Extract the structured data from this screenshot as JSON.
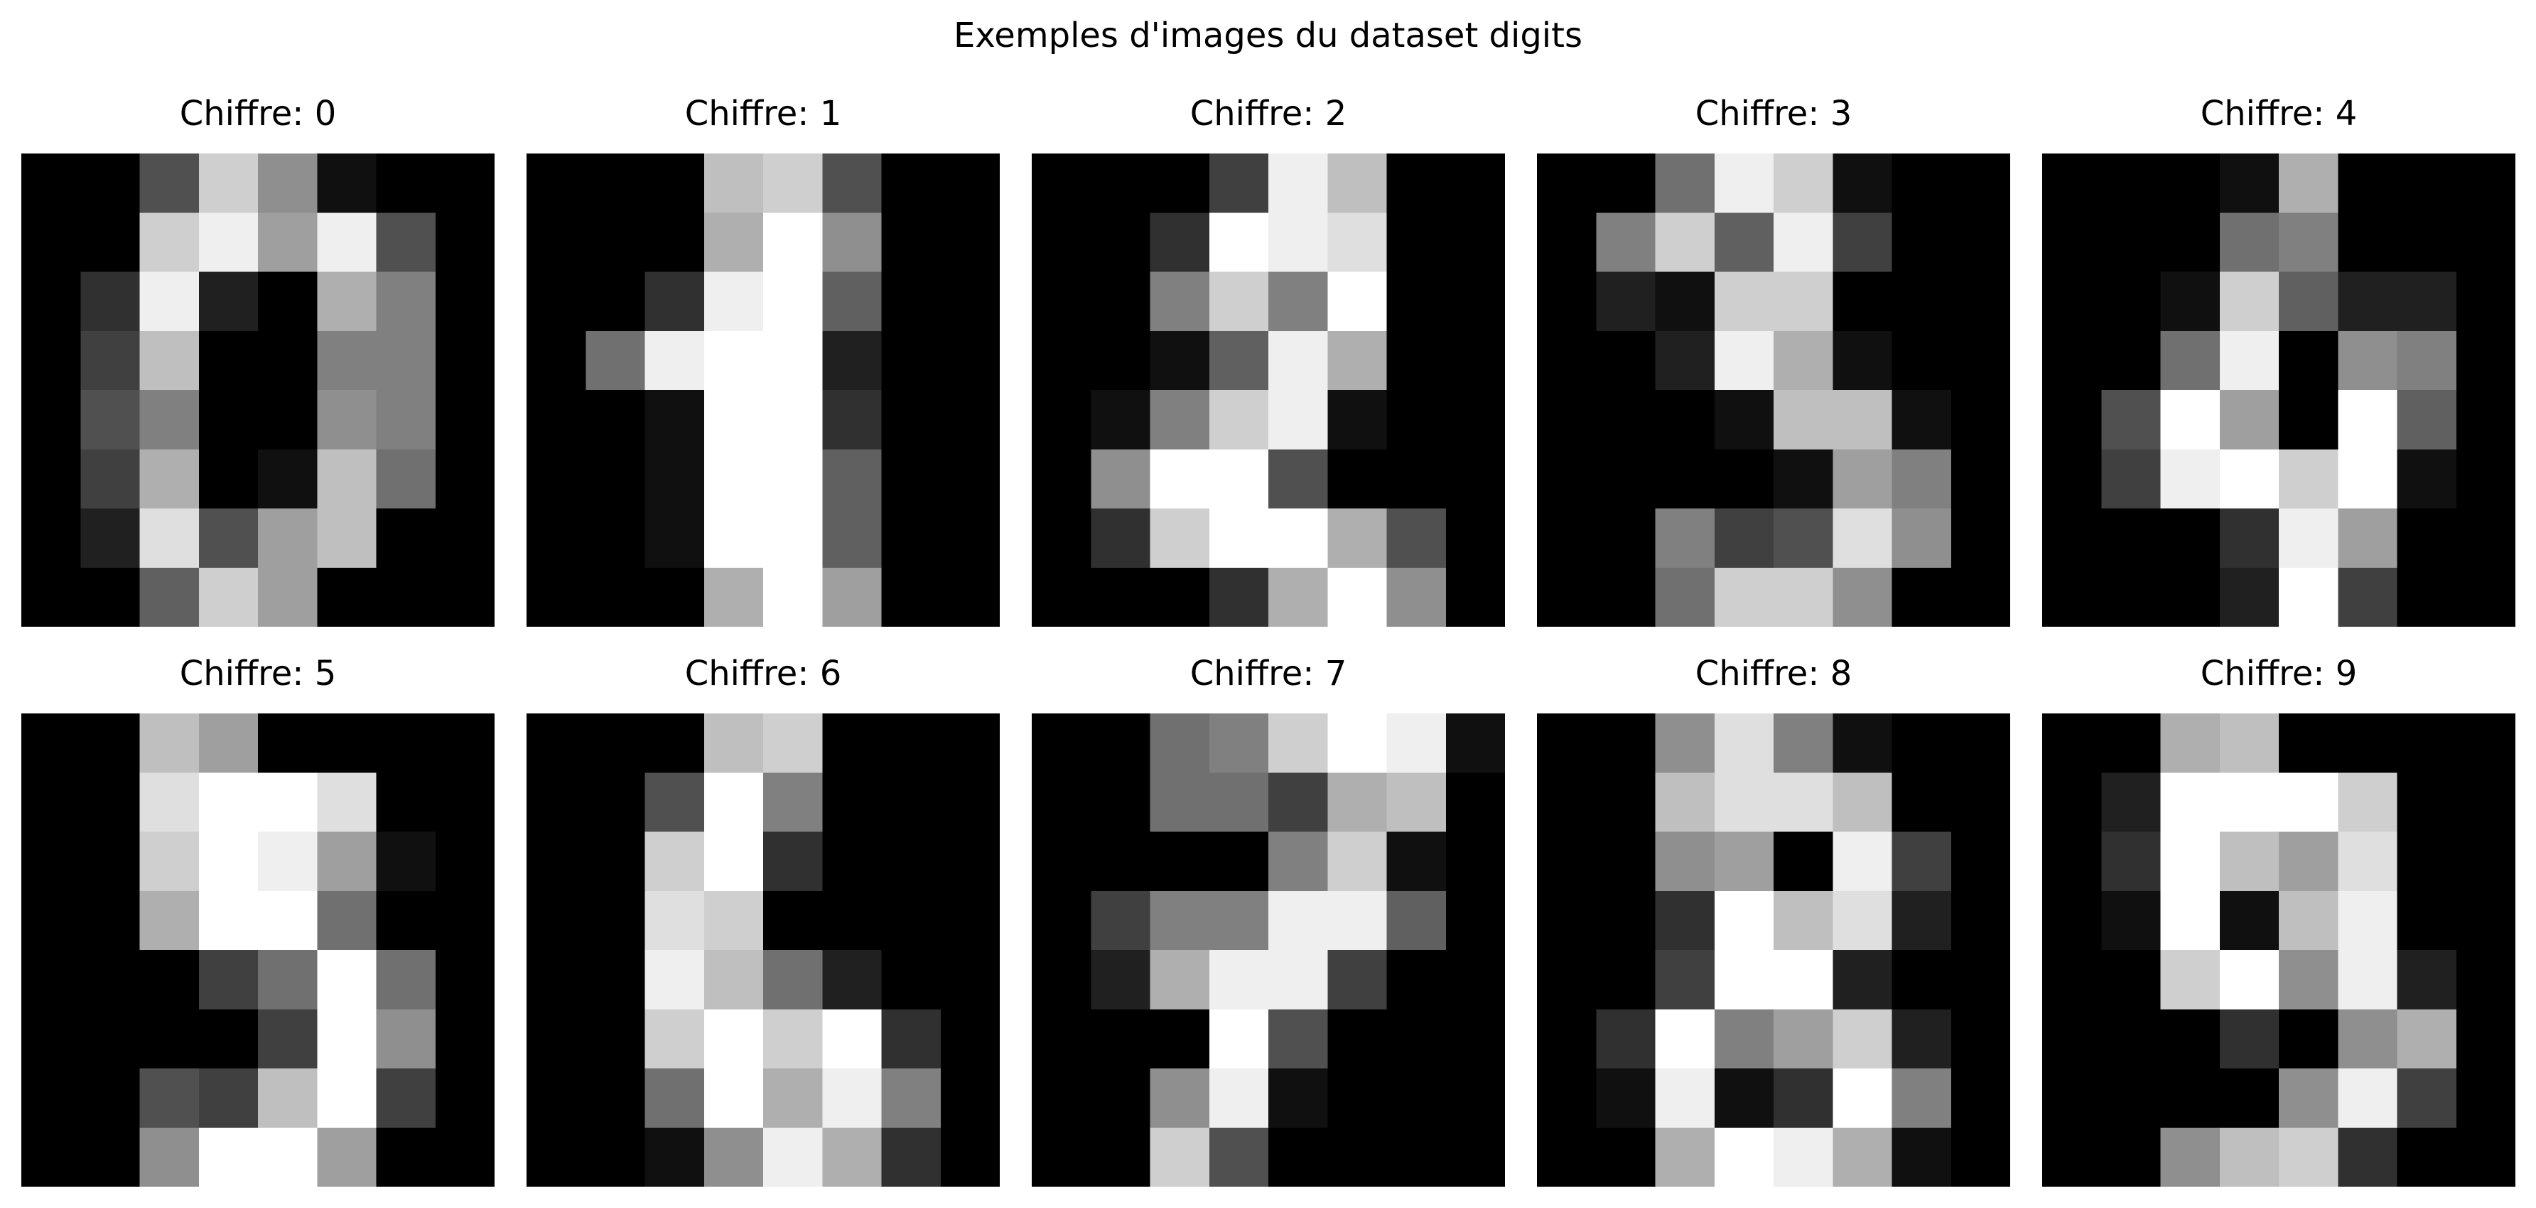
{
  "chart_data": {
    "type": "heatmap",
    "title": "Exemples d'images du dataset digits",
    "colormap": "gray",
    "value_range": [
      0,
      16
    ],
    "panels": [
      {
        "title": "Chiffre: 0",
        "pixels": [
          [
            0,
            0,
            5,
            13,
            9,
            1,
            0,
            0
          ],
          [
            0,
            0,
            13,
            15,
            10,
            15,
            5,
            0
          ],
          [
            0,
            3,
            15,
            2,
            0,
            11,
            8,
            0
          ],
          [
            0,
            4,
            12,
            0,
            0,
            8,
            8,
            0
          ],
          [
            0,
            5,
            8,
            0,
            0,
            9,
            8,
            0
          ],
          [
            0,
            4,
            11,
            0,
            1,
            12,
            7,
            0
          ],
          [
            0,
            2,
            14,
            5,
            10,
            12,
            0,
            0
          ],
          [
            0,
            0,
            6,
            13,
            10,
            0,
            0,
            0
          ]
        ]
      },
      {
        "title": "Chiffre: 1",
        "pixels": [
          [
            0,
            0,
            0,
            12,
            13,
            5,
            0,
            0
          ],
          [
            0,
            0,
            0,
            11,
            16,
            9,
            0,
            0
          ],
          [
            0,
            0,
            3,
            15,
            16,
            6,
            0,
            0
          ],
          [
            0,
            7,
            15,
            16,
            16,
            2,
            0,
            0
          ],
          [
            0,
            0,
            1,
            16,
            16,
            3,
            0,
            0
          ],
          [
            0,
            0,
            1,
            16,
            16,
            6,
            0,
            0
          ],
          [
            0,
            0,
            1,
            16,
            16,
            6,
            0,
            0
          ],
          [
            0,
            0,
            0,
            11,
            16,
            10,
            0,
            0
          ]
        ]
      },
      {
        "title": "Chiffre: 2",
        "pixels": [
          [
            0,
            0,
            0,
            4,
            15,
            12,
            0,
            0
          ],
          [
            0,
            0,
            3,
            16,
            15,
            14,
            0,
            0
          ],
          [
            0,
            0,
            8,
            13,
            8,
            16,
            0,
            0
          ],
          [
            0,
            0,
            1,
            6,
            15,
            11,
            0,
            0
          ],
          [
            0,
            1,
            8,
            13,
            15,
            1,
            0,
            0
          ],
          [
            0,
            9,
            16,
            16,
            5,
            0,
            0,
            0
          ],
          [
            0,
            3,
            13,
            16,
            16,
            11,
            5,
            0
          ],
          [
            0,
            0,
            0,
            3,
            11,
            16,
            9,
            0
          ]
        ]
      },
      {
        "title": "Chiffre: 3",
        "pixels": [
          [
            0,
            0,
            7,
            15,
            13,
            1,
            0,
            0
          ],
          [
            0,
            8,
            13,
            6,
            15,
            4,
            0,
            0
          ],
          [
            0,
            2,
            1,
            13,
            13,
            0,
            0,
            0
          ],
          [
            0,
            0,
            2,
            15,
            11,
            1,
            0,
            0
          ],
          [
            0,
            0,
            0,
            1,
            12,
            12,
            1,
            0
          ],
          [
            0,
            0,
            0,
            0,
            1,
            10,
            8,
            0
          ],
          [
            0,
            0,
            8,
            4,
            5,
            14,
            9,
            0
          ],
          [
            0,
            0,
            7,
            13,
            13,
            9,
            0,
            0
          ]
        ]
      },
      {
        "title": "Chiffre: 4",
        "pixels": [
          [
            0,
            0,
            0,
            1,
            11,
            0,
            0,
            0
          ],
          [
            0,
            0,
            0,
            7,
            8,
            0,
            0,
            0
          ],
          [
            0,
            0,
            1,
            13,
            6,
            2,
            2,
            0
          ],
          [
            0,
            0,
            7,
            15,
            0,
            9,
            8,
            0
          ],
          [
            0,
            5,
            16,
            10,
            0,
            16,
            6,
            0
          ],
          [
            0,
            4,
            15,
            16,
            13,
            16,
            1,
            0
          ],
          [
            0,
            0,
            0,
            3,
            15,
            10,
            0,
            0
          ],
          [
            0,
            0,
            0,
            2,
            16,
            4,
            0,
            0
          ]
        ]
      },
      {
        "title": "Chiffre: 5",
        "pixels": [
          [
            0,
            0,
            12,
            10,
            0,
            0,
            0,
            0
          ],
          [
            0,
            0,
            14,
            16,
            16,
            14,
            0,
            0
          ],
          [
            0,
            0,
            13,
            16,
            15,
            10,
            1,
            0
          ],
          [
            0,
            0,
            11,
            16,
            16,
            7,
            0,
            0
          ],
          [
            0,
            0,
            0,
            4,
            7,
            16,
            7,
            0
          ],
          [
            0,
            0,
            0,
            0,
            4,
            16,
            9,
            0
          ],
          [
            0,
            0,
            5,
            4,
            12,
            16,
            4,
            0
          ],
          [
            0,
            0,
            9,
            16,
            16,
            10,
            0,
            0
          ]
        ]
      },
      {
        "title": "Chiffre: 6",
        "pixels": [
          [
            0,
            0,
            0,
            12,
            13,
            0,
            0,
            0
          ],
          [
            0,
            0,
            5,
            16,
            8,
            0,
            0,
            0
          ],
          [
            0,
            0,
            13,
            16,
            3,
            0,
            0,
            0
          ],
          [
            0,
            0,
            14,
            13,
            0,
            0,
            0,
            0
          ],
          [
            0,
            0,
            15,
            12,
            7,
            2,
            0,
            0
          ],
          [
            0,
            0,
            13,
            16,
            13,
            16,
            3,
            0
          ],
          [
            0,
            0,
            7,
            16,
            11,
            15,
            8,
            0
          ],
          [
            0,
            0,
            1,
            9,
            15,
            11,
            3,
            0
          ]
        ]
      },
      {
        "title": "Chiffre: 7",
        "pixels": [
          [
            0,
            0,
            7,
            8,
            13,
            16,
            15,
            1
          ],
          [
            0,
            0,
            7,
            7,
            4,
            11,
            12,
            0
          ],
          [
            0,
            0,
            0,
            0,
            8,
            13,
            1,
            0
          ],
          [
            0,
            4,
            8,
            8,
            15,
            15,
            6,
            0
          ],
          [
            0,
            2,
            11,
            15,
            15,
            4,
            0,
            0
          ],
          [
            0,
            0,
            0,
            16,
            5,
            0,
            0,
            0
          ],
          [
            0,
            0,
            9,
            15,
            1,
            0,
            0,
            0
          ],
          [
            0,
            0,
            13,
            5,
            0,
            0,
            0,
            0
          ]
        ]
      },
      {
        "title": "Chiffre: 8",
        "pixels": [
          [
            0,
            0,
            9,
            14,
            8,
            1,
            0,
            0
          ],
          [
            0,
            0,
            12,
            14,
            14,
            12,
            0,
            0
          ],
          [
            0,
            0,
            9,
            10,
            0,
            15,
            4,
            0
          ],
          [
            0,
            0,
            3,
            16,
            12,
            14,
            2,
            0
          ],
          [
            0,
            0,
            4,
            16,
            16,
            2,
            0,
            0
          ],
          [
            0,
            3,
            16,
            8,
            10,
            13,
            2,
            0
          ],
          [
            0,
            1,
            15,
            1,
            3,
            16,
            8,
            0
          ],
          [
            0,
            0,
            11,
            16,
            15,
            11,
            1,
            0
          ]
        ]
      },
      {
        "title": "Chiffre: 9",
        "pixels": [
          [
            0,
            0,
            11,
            12,
            0,
            0,
            0,
            0
          ],
          [
            0,
            2,
            16,
            16,
            16,
            13,
            0,
            0
          ],
          [
            0,
            3,
            16,
            12,
            10,
            14,
            0,
            0
          ],
          [
            0,
            1,
            16,
            1,
            12,
            15,
            0,
            0
          ],
          [
            0,
            0,
            13,
            16,
            9,
            15,
            2,
            0
          ],
          [
            0,
            0,
            0,
            3,
            0,
            9,
            11,
            0
          ],
          [
            0,
            0,
            0,
            0,
            9,
            15,
            4,
            0
          ],
          [
            0,
            0,
            9,
            12,
            13,
            3,
            0,
            0
          ]
        ]
      }
    ]
  }
}
